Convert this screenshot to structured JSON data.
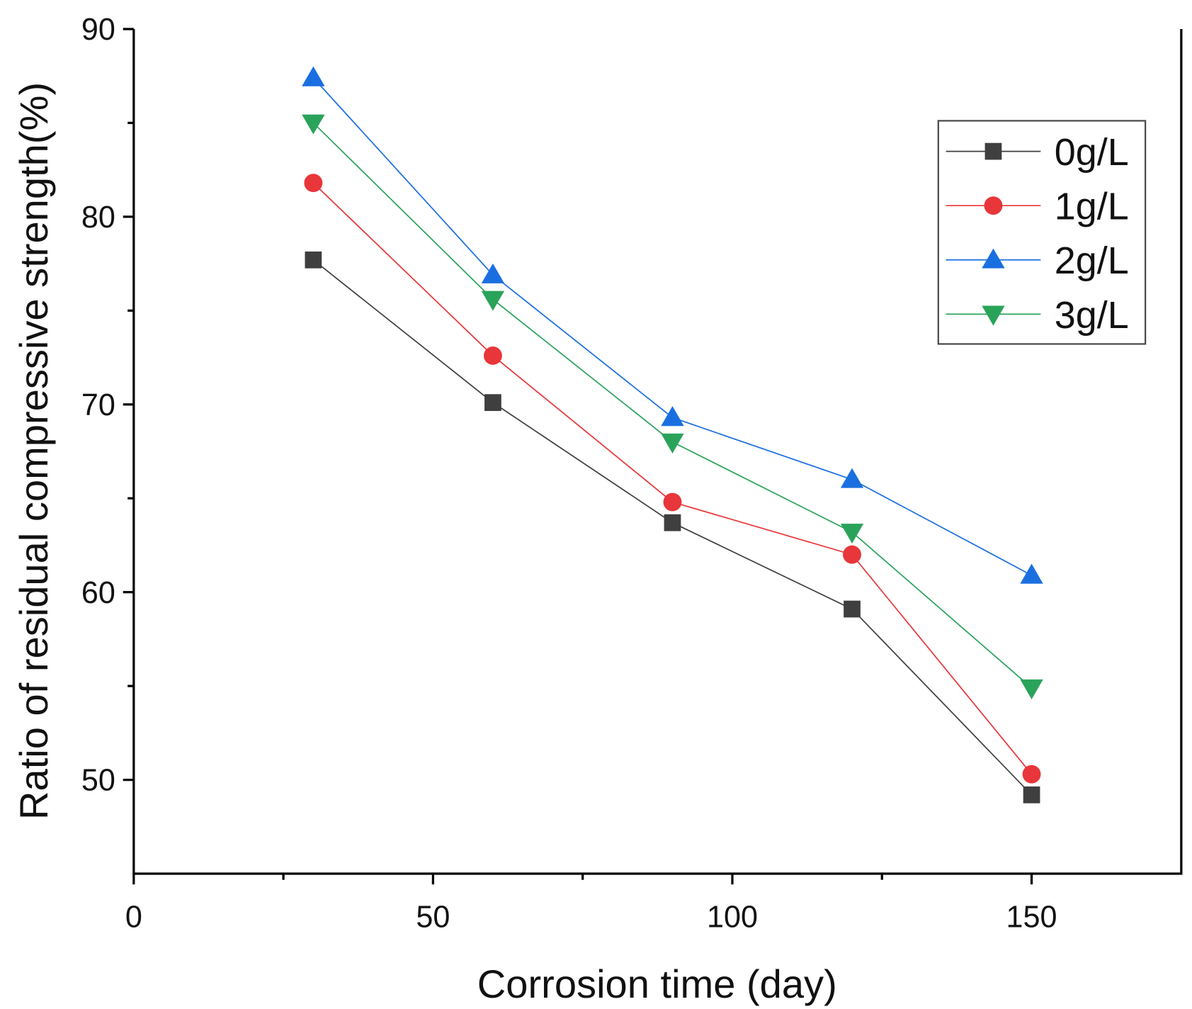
{
  "chart_data": {
    "type": "line",
    "title": "",
    "xlabel": "Corrosion time (day)",
    "ylabel": "Ratio of residual compressive strength(%)",
    "xlim": [
      0,
      175
    ],
    "ylim": [
      45,
      90
    ],
    "x_ticks": [
      0,
      50,
      100,
      150
    ],
    "y_ticks": [
      50,
      60,
      70,
      80,
      90
    ],
    "x_tick_labels": [
      "0",
      "50",
      "100",
      "150"
    ],
    "y_tick_labels": [
      "50",
      "60",
      "70",
      "80",
      "90"
    ],
    "grid": false,
    "legend_position": "top-right",
    "x": [
      30,
      60,
      90,
      120,
      150
    ],
    "series": [
      {
        "name": "0g/L",
        "color": "#3f3f3f",
        "marker": "square",
        "values": [
          77.7,
          70.1,
          63.7,
          59.1,
          49.2
        ]
      },
      {
        "name": "1g/L",
        "color": "#e8363a",
        "marker": "circle",
        "values": [
          81.8,
          72.6,
          64.8,
          62.0,
          50.3
        ]
      },
      {
        "name": "2g/L",
        "color": "#1a6fe0",
        "marker": "triangle-up",
        "values": [
          87.4,
          76.9,
          69.3,
          66.0,
          60.9
        ]
      },
      {
        "name": "3g/L",
        "color": "#2aa35a",
        "marker": "triangle-down",
        "values": [
          85.0,
          75.6,
          68.0,
          63.2,
          54.9
        ]
      }
    ]
  }
}
